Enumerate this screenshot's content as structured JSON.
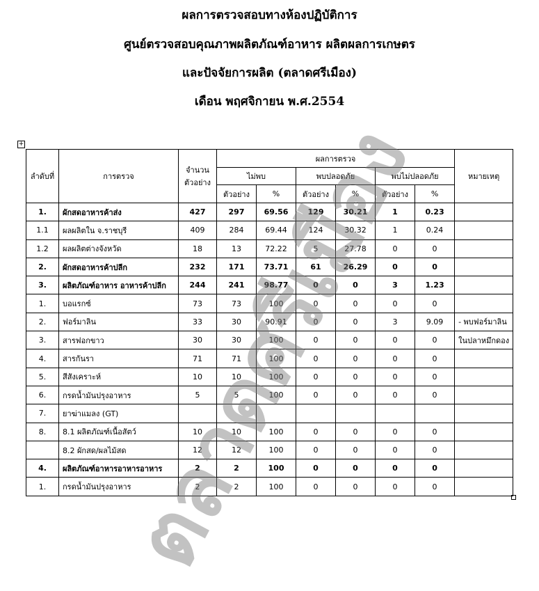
{
  "title_lines": [
    "ผลการตรวจสอบทางห้องปฏิบัติการ",
    "ศูนย์ตรวจสอบคุณภาพผลิตภัณฑ์อาหาร ผลิตผลการเกษตร",
    "และปัจจัยการผลิต (ตลาดศรีเมือง)",
    "เดือน พฤศจิกายน พ.ศ.2554"
  ],
  "watermark": "ตลาดศรีเมือง",
  "table": {
    "header": {
      "order": "ลำดับที่",
      "check": "การตรวจ",
      "samples": "จำนวนตัวอย่าง",
      "results": "ผลการตรวจ",
      "remark": "หมายเหตุ",
      "groups": [
        "ไม่พบ",
        "พบปลอดภัย",
        "พบไม่ปลอดภัย"
      ],
      "sub": [
        "ตัวอย่าง",
        "%",
        "ตัวอย่าง",
        "%",
        "ตัวอย่าง",
        "%"
      ]
    },
    "rows": [
      {
        "bold": true,
        "cells": [
          "1.",
          "ผักสดอาหารค้าส่ง",
          427,
          297,
          69.56,
          129,
          30.21,
          1,
          0.23,
          null
        ]
      },
      {
        "bold": false,
        "cells": [
          "1.1",
          "ผลผลิตใน จ.ราชบุรี",
          409,
          284,
          69.44,
          124,
          30.32,
          1,
          0.24,
          null
        ]
      },
      {
        "bold": false,
        "cells": [
          "1.2",
          "ผลผลิตต่างจังหวัด",
          18,
          13,
          72.22,
          5,
          27.78,
          0,
          0,
          null
        ]
      },
      {
        "bold": true,
        "cells": [
          "2.",
          "ผักสดอาหารค้าปลีก",
          232,
          171,
          73.71,
          61,
          26.29,
          0,
          0,
          null
        ]
      },
      {
        "bold": true,
        "cells": [
          "3.",
          "ผลิตภัณฑ์อาหาร อาหารค้าปลีก",
          244,
          241,
          98.77,
          0,
          0,
          3,
          1.23,
          null
        ]
      },
      {
        "bold": false,
        "cells": [
          "1.",
          "บอแรกซ์",
          73,
          73,
          100,
          0,
          0,
          0,
          0,
          null
        ]
      },
      {
        "bold": false,
        "cells": [
          "2.",
          "ฟอร์มาลิน",
          33,
          30,
          90.91,
          0,
          0,
          3,
          9.09,
          "- พบฟอร์มาลิน"
        ]
      },
      {
        "bold": false,
        "cells": [
          "3.",
          "สารฟอกขาว",
          30,
          30,
          100,
          0,
          0,
          0,
          0,
          "ในปลาหมึกดอง"
        ]
      },
      {
        "bold": false,
        "cells": [
          "4.",
          "สารกันรา",
          71,
          71,
          100,
          0,
          0,
          0,
          0,
          null
        ]
      },
      {
        "bold": false,
        "cells": [
          "5.",
          "สีสังเคราะห์",
          10,
          10,
          100,
          0,
          0,
          0,
          0,
          null
        ]
      },
      {
        "bold": false,
        "cells": [
          "6.",
          "กรดน้ำมันปรุงอาหาร",
          5,
          5,
          100,
          0,
          0,
          0,
          0,
          null
        ]
      },
      {
        "bold": false,
        "cells": [
          "7.",
          "ยาฆ่าแมลง (GT)",
          null,
          null,
          null,
          null,
          null,
          null,
          null,
          null
        ]
      },
      {
        "bold": false,
        "cells": [
          "8.",
          "8.1 ผลิตภัณฑ์เนื้อสัตว์",
          10,
          10,
          100,
          0,
          0,
          0,
          0,
          null
        ]
      },
      {
        "bold": false,
        "cells": [
          null,
          "8.2 ผักสด/ผลไม้สด",
          12,
          12,
          100,
          0,
          0,
          0,
          0,
          null
        ]
      },
      {
        "bold": true,
        "cells": [
          "4.",
          "ผลิตภัณฑ์อาหารอาหารอาหาร",
          2,
          2,
          100,
          0,
          0,
          0,
          0,
          null
        ]
      },
      {
        "bold": false,
        "cells": [
          "1.",
          "กรดน้ำมันปรุงอาหาร",
          2,
          2,
          100,
          0,
          0,
          0,
          0,
          null
        ]
      }
    ]
  }
}
